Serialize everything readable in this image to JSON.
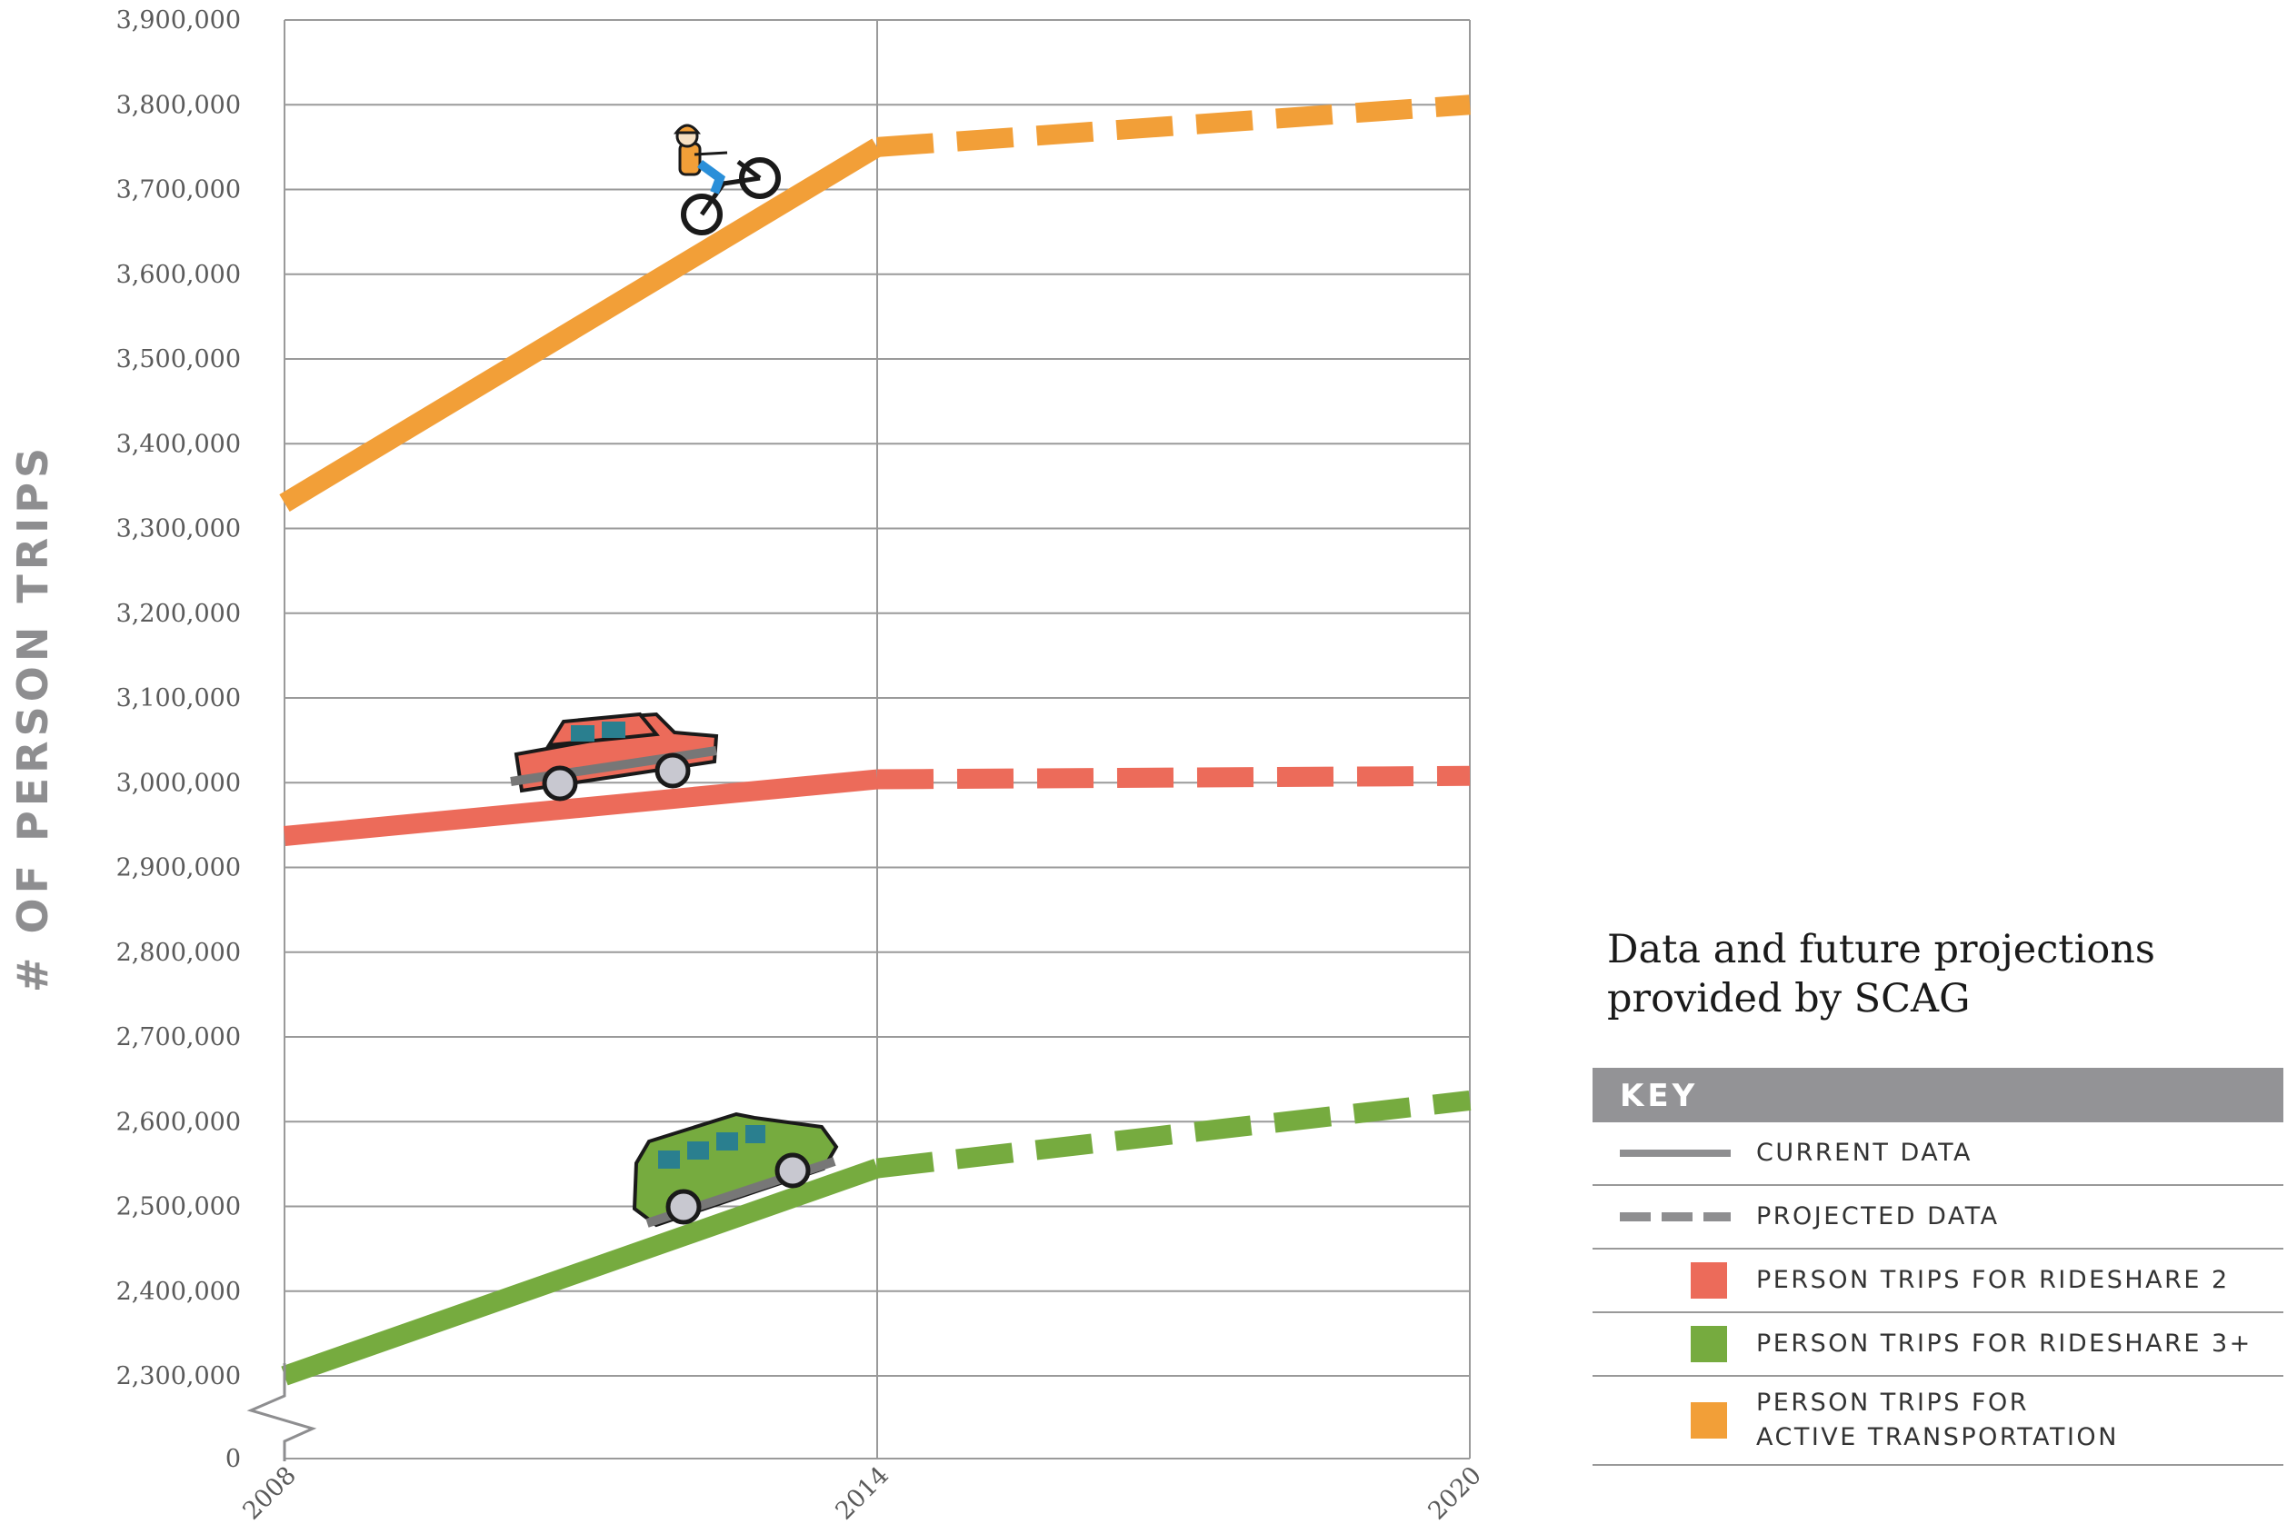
{
  "chart_data": {
    "type": "line",
    "ylabel": "# OF PERSON TRIPS",
    "xlabel": "",
    "x_ticks": [
      "2008",
      "2014",
      "2020"
    ],
    "y_ticks": [
      "3,900,000",
      "3,800,000",
      "3,700,000",
      "3,600,000",
      "3,500,000",
      "3,400,000",
      "3,300,000",
      "3,200,000",
      "3,100,000",
      "3,000,000",
      "2,900,000",
      "2,800,000",
      "2,700,000",
      "2,600,000",
      "2,500,000",
      "2,400,000",
      "2,300,000",
      "0"
    ],
    "y_tick_values": [
      3900000,
      3800000,
      3700000,
      3600000,
      3500000,
      3400000,
      3300000,
      3200000,
      3100000,
      3000000,
      2900000,
      2800000,
      2700000,
      2600000,
      2500000,
      2400000,
      2300000
    ],
    "ylim": [
      2300000,
      3900000
    ],
    "y_axis_break": true,
    "grid": true,
    "series": [
      {
        "name": "PERSON TRIPS FOR ACTIVE TRANSPORTATION",
        "color": "#f29f38",
        "icon": "bicycle-icon",
        "current": {
          "x": [
            2008,
            2014
          ],
          "y": [
            3330000,
            3750000
          ]
        },
        "projected": {
          "x": [
            2014,
            2020
          ],
          "y": [
            3750000,
            3800000
          ]
        }
      },
      {
        "name": "PERSON TRIPS FOR RIDESHARE 2",
        "color": "#ec6b5a",
        "icon": "car-icon",
        "current": {
          "x": [
            2008,
            2014
          ],
          "y": [
            2937000,
            3004000
          ]
        },
        "projected": {
          "x": [
            2014,
            2020
          ],
          "y": [
            3004000,
            3008000
          ]
        }
      },
      {
        "name": "PERSON TRIPS FOR RIDESHARE 3+",
        "color": "#76ab3f",
        "icon": "van-icon",
        "current": {
          "x": [
            2008,
            2014
          ],
          "y": [
            2300000,
            2545000
          ]
        },
        "projected": {
          "x": [
            2014,
            2020
          ],
          "y": [
            2545000,
            2625000
          ]
        }
      }
    ]
  },
  "note": "Data and future projections provided by SCAG",
  "key": {
    "title": "KEY",
    "current_label": "CURRENT DATA",
    "projected_label": "PROJECTED DATA",
    "rideshare2_label": "PERSON TRIPS FOR RIDESHARE 2",
    "rideshare3_label": "PERSON TRIPS FOR RIDESHARE 3+",
    "active_label": "PERSON TRIPS FOR\nACTIVE TRANSPORTATION",
    "line_color": "#8e8e90",
    "rideshare2_color": "#ec6b5a",
    "rideshare3_color": "#76ab3f",
    "active_color": "#f29f38"
  }
}
